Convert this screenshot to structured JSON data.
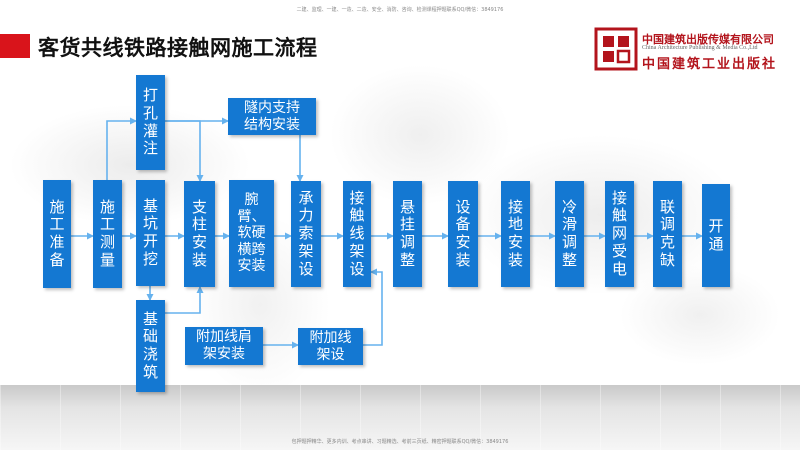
{
  "header": {
    "top_note": "二建、监理、一建、一造、二造、安全、消防、咨询、检测课程押题联系QQ/微信：3849176",
    "title": "客货共线铁路接触网施工流程",
    "bottom_note": "包押题押精华、更多内训、考点串讲、习题精选、考前三页纸、精密押题联系QQ/微信：3849176"
  },
  "logo": {
    "name": "中国建筑出版传媒有限公司",
    "name_en": "China Architecture Publishing & Media Co.,Ltd",
    "sub": "中国建筑工业出版社",
    "icon": "publisher-logo-icon",
    "color": "#b3141c"
  },
  "colors": {
    "node": "#1478d2",
    "arrow": "#66b2ee",
    "accent": "#d9141b"
  },
  "nodes": {
    "n1": "施\n工\n准\n备",
    "n2": "施\n工\n测\n量",
    "n3": "基\n坑\n开\n挖",
    "n4": "打\n孔\n灌\n注",
    "n5": "基\n础\n浇\n筑",
    "n6": "支\n柱\n安\n装",
    "n7": "隧内支持\n结构安装",
    "n8": "附加线肩\n架安装",
    "n9": "腕臂、\n软硬\n横跨\n安装",
    "n10": "承\n力\n索\n架\n设",
    "n11": "附加线\n架设",
    "n12": "接\n触\n线\n架\n设",
    "n13": "悬\n挂\n调\n整",
    "n14": "设\n备\n安\n装",
    "n15": "接\n地\n安\n装",
    "n16": "冷\n滑\n调\n整",
    "n17": "接\n触\n网\n受\n电",
    "n18": "联\n调\n克\n缺",
    "n19": "开\n通"
  }
}
